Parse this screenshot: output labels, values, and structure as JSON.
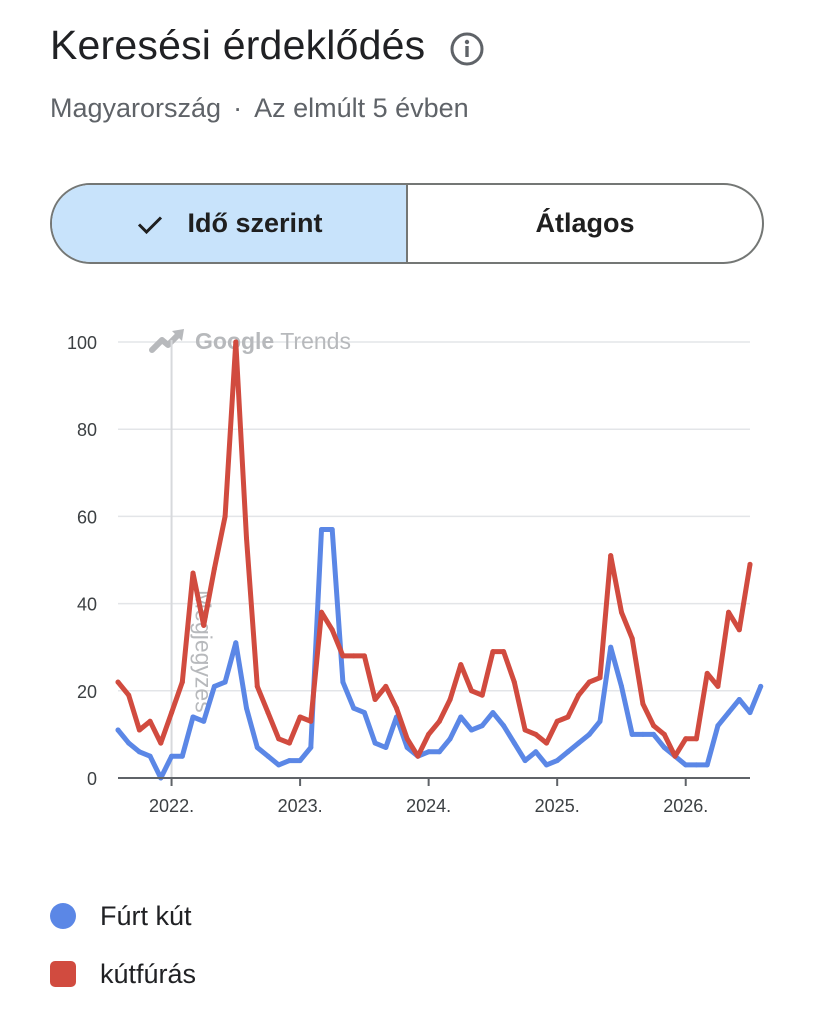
{
  "header": {
    "title": "Keresési érdeklődés",
    "region": "Magyarország",
    "separator": "·",
    "period": "Az elmúlt 5 évben"
  },
  "toggle": {
    "by_time_label": "Idő szerint",
    "average_label": "Átlagos",
    "selected": "by_time"
  },
  "watermark": {
    "brand": "Google",
    "product": "Trends",
    "note": "Megjegyzés"
  },
  "colors": {
    "series_blue": "#5b87e6",
    "series_red": "#d14b3f",
    "toggle_active": "#c8e3fb"
  },
  "chart_data": {
    "type": "line",
    "ylim": [
      0,
      100
    ],
    "yticks": [
      0,
      20,
      40,
      60,
      80,
      100
    ],
    "xlim": [
      "2021-08",
      "2026-07"
    ],
    "xticks": [
      {
        "label": "2022.",
        "value": "2022-01"
      },
      {
        "label": "2023.",
        "value": "2023-01"
      },
      {
        "label": "2024.",
        "value": "2024-01"
      },
      {
        "label": "2025.",
        "value": "2025-01"
      },
      {
        "label": "2026.",
        "value": "2026-01"
      }
    ],
    "note_date": "2022-01",
    "grid": true,
    "series": [
      {
        "name": "Fúrt kút",
        "color": "#5b87e6",
        "points": [
          [
            "2021-08",
            11
          ],
          [
            "2021-09",
            8
          ],
          [
            "2021-10",
            6
          ],
          [
            "2021-11",
            5
          ],
          [
            "2021-12",
            0
          ],
          [
            "2022-01",
            5
          ],
          [
            "2022-02",
            5
          ],
          [
            "2022-03",
            14
          ],
          [
            "2022-04",
            13
          ],
          [
            "2022-05",
            21
          ],
          [
            "2022-06",
            22
          ],
          [
            "2022-07",
            31
          ],
          [
            "2022-08",
            16
          ],
          [
            "2022-09",
            7
          ],
          [
            "2022-10",
            5
          ],
          [
            "2022-11",
            3
          ],
          [
            "2022-12",
            4
          ],
          [
            "2023-01",
            4
          ],
          [
            "2023-02",
            7
          ],
          [
            "2023-03",
            57
          ],
          [
            "2023-04",
            57
          ],
          [
            "2023-05",
            22
          ],
          [
            "2023-06",
            16
          ],
          [
            "2023-07",
            15
          ],
          [
            "2023-08",
            8
          ],
          [
            "2023-09",
            7
          ],
          [
            "2023-10",
            14
          ],
          [
            "2023-11",
            7
          ],
          [
            "2023-12",
            5
          ],
          [
            "2024-01",
            6
          ],
          [
            "2024-02",
            6
          ],
          [
            "2024-03",
            9
          ],
          [
            "2024-04",
            14
          ],
          [
            "2024-05",
            11
          ],
          [
            "2024-06",
            12
          ],
          [
            "2024-07",
            15
          ],
          [
            "2024-08",
            12
          ],
          [
            "2024-09",
            8
          ],
          [
            "2024-10",
            4
          ],
          [
            "2024-11",
            6
          ],
          [
            "2024-12",
            3
          ],
          [
            "2025-01",
            4
          ],
          [
            "2025-02",
            6
          ],
          [
            "2025-03",
            8
          ],
          [
            "2025-04",
            10
          ],
          [
            "2025-05",
            13
          ],
          [
            "2025-06",
            30
          ],
          [
            "2025-07",
            21
          ],
          [
            "2025-08",
            10
          ],
          [
            "2025-09",
            10
          ],
          [
            "2025-10",
            10
          ],
          [
            "2025-11",
            7
          ],
          [
            "2025-12",
            5
          ],
          [
            "2026-01",
            3
          ],
          [
            "2026-02",
            3
          ],
          [
            "2026-03",
            3
          ],
          [
            "2026-04",
            12
          ],
          [
            "2026-05",
            15
          ],
          [
            "2026-06",
            18
          ],
          [
            "2026-07",
            15
          ],
          [
            "2026-08",
            21
          ]
        ]
      },
      {
        "name": "kútfúrás",
        "color": "#d14b3f",
        "points": [
          [
            "2021-08",
            22
          ],
          [
            "2021-09",
            19
          ],
          [
            "2021-10",
            11
          ],
          [
            "2021-11",
            13
          ],
          [
            "2021-12",
            8
          ],
          [
            "2022-01",
            15
          ],
          [
            "2022-02",
            22
          ],
          [
            "2022-03",
            47
          ],
          [
            "2022-04",
            35
          ],
          [
            "2022-05",
            48
          ],
          [
            "2022-06",
            60
          ],
          [
            "2022-07",
            100
          ],
          [
            "2022-08",
            55
          ],
          [
            "2022-09",
            21
          ],
          [
            "2022-10",
            15
          ],
          [
            "2022-11",
            9
          ],
          [
            "2022-12",
            8
          ],
          [
            "2023-01",
            14
          ],
          [
            "2023-02",
            13
          ],
          [
            "2023-03",
            38
          ],
          [
            "2023-04",
            34
          ],
          [
            "2023-05",
            28
          ],
          [
            "2023-06",
            28
          ],
          [
            "2023-07",
            28
          ],
          [
            "2023-08",
            18
          ],
          [
            "2023-09",
            21
          ],
          [
            "2023-10",
            16
          ],
          [
            "2023-11",
            9
          ],
          [
            "2023-12",
            5
          ],
          [
            "2024-01",
            10
          ],
          [
            "2024-02",
            13
          ],
          [
            "2024-03",
            18
          ],
          [
            "2024-04",
            26
          ],
          [
            "2024-05",
            20
          ],
          [
            "2024-06",
            19
          ],
          [
            "2024-07",
            29
          ],
          [
            "2024-08",
            29
          ],
          [
            "2024-09",
            22
          ],
          [
            "2024-10",
            11
          ],
          [
            "2024-11",
            10
          ],
          [
            "2024-12",
            8
          ],
          [
            "2025-01",
            13
          ],
          [
            "2025-02",
            14
          ],
          [
            "2025-03",
            19
          ],
          [
            "2025-04",
            22
          ],
          [
            "2025-05",
            23
          ],
          [
            "2025-06",
            51
          ],
          [
            "2025-07",
            38
          ],
          [
            "2025-08",
            32
          ],
          [
            "2025-09",
            17
          ],
          [
            "2025-10",
            12
          ],
          [
            "2025-11",
            10
          ],
          [
            "2025-12",
            5
          ],
          [
            "2026-01",
            9
          ],
          [
            "2026-02",
            9
          ],
          [
            "2026-03",
            24
          ],
          [
            "2026-04",
            21
          ],
          [
            "2026-05",
            38
          ],
          [
            "2026-06",
            34
          ],
          [
            "2026-07",
            49
          ]
        ]
      }
    ]
  },
  "legend": {
    "placement": "bottom-left",
    "items": [
      {
        "label": "Fúrt kút",
        "color": "#5b87e6",
        "shape": "circle"
      },
      {
        "label": "kútfúrás",
        "color": "#d14b3f",
        "shape": "square"
      }
    ]
  }
}
